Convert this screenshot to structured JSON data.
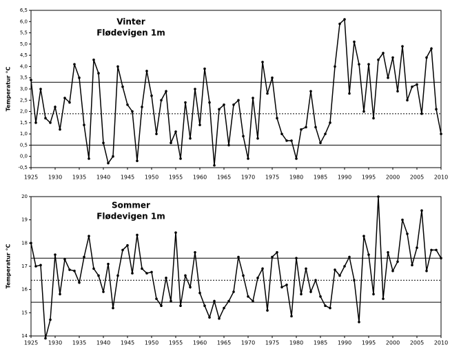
{
  "chart_data": [
    {
      "type": "line",
      "title": "Vinter",
      "subtitle": "Flødevigen 1m",
      "y_label": "Temperatur °C",
      "color": "#000000",
      "x": [
        1925,
        1926,
        1927,
        1928,
        1929,
        1930,
        1931,
        1932,
        1933,
        1934,
        1935,
        1936,
        1937,
        1938,
        1939,
        1940,
        1941,
        1942,
        1943,
        1944,
        1945,
        1946,
        1947,
        1948,
        1949,
        1950,
        1951,
        1952,
        1953,
        1954,
        1955,
        1956,
        1957,
        1958,
        1959,
        1960,
        1961,
        1962,
        1963,
        1964,
        1965,
        1966,
        1967,
        1968,
        1969,
        1970,
        1971,
        1972,
        1973,
        1974,
        1975,
        1976,
        1977,
        1978,
        1979,
        1980,
        1981,
        1982,
        1983,
        1984,
        1985,
        1986,
        1987,
        1988,
        1989,
        1990,
        1991,
        1992,
        1993,
        1994,
        1995,
        1996,
        1997,
        1998,
        1999,
        2000,
        2001,
        2002,
        2003,
        2004,
        2005,
        2006,
        2007,
        2008,
        2009,
        2010
      ],
      "values": [
        3.4,
        1.5,
        3.0,
        1.7,
        1.5,
        2.2,
        1.2,
        2.6,
        2.4,
        4.1,
        3.5,
        1.4,
        -0.1,
        4.3,
        3.7,
        0.6,
        -0.3,
        0.0,
        4.0,
        3.1,
        2.3,
        2.0,
        -0.2,
        2.2,
        3.8,
        2.7,
        1.0,
        2.5,
        2.9,
        0.6,
        1.1,
        -0.1,
        2.4,
        0.8,
        3.0,
        1.4,
        3.9,
        2.4,
        -0.4,
        2.1,
        2.3,
        0.5,
        2.3,
        2.5,
        0.9,
        -0.1,
        2.6,
        0.8,
        4.2,
        2.8,
        3.5,
        1.7,
        1.0,
        0.7,
        0.7,
        -0.1,
        1.2,
        1.3,
        2.9,
        1.3,
        0.6,
        1.0,
        1.5,
        4.0,
        5.9,
        6.1,
        2.8,
        5.1,
        4.1,
        2.0,
        4.1,
        1.7,
        4.3,
        4.6,
        3.5,
        4.4,
        2.9,
        4.9,
        2.5,
        3.1,
        3.2,
        1.9,
        4.4,
        4.8,
        2.1,
        1.0
      ],
      "xlim": [
        1925,
        2010
      ],
      "xticks": [
        1925,
        1930,
        1935,
        1940,
        1945,
        1950,
        1955,
        1960,
        1965,
        1970,
        1975,
        1980,
        1985,
        1990,
        1995,
        2000,
        2005,
        2010
      ],
      "ylim": [
        -0.5,
        6.5
      ],
      "yticks": [
        {
          "value": -0.5,
          "label": "-0,5"
        },
        {
          "value": 0,
          "label": "0,0"
        },
        {
          "value": 0.5,
          "label": "0,5"
        },
        {
          "value": 1,
          "label": "1,0"
        },
        {
          "value": 1.5,
          "label": "1,5"
        },
        {
          "value": 2,
          "label": "2,0"
        },
        {
          "value": 2.5,
          "label": "2,5"
        },
        {
          "value": 3,
          "label": "3,0"
        },
        {
          "value": 3.5,
          "label": "3,5"
        },
        {
          "value": 4,
          "label": "4,0"
        },
        {
          "value": 4.5,
          "label": "4,5"
        },
        {
          "value": 5,
          "label": "5,0"
        },
        {
          "value": 5.5,
          "label": "5,5"
        },
        {
          "value": 6,
          "label": "6,0"
        },
        {
          "value": 6.5,
          "label": "6,5"
        }
      ],
      "hlines": [
        {
          "value": 3.3,
          "style": "solid"
        },
        {
          "value": 1.9,
          "style": "dotted"
        },
        {
          "value": 0.5,
          "style": "solid"
        }
      ]
    },
    {
      "type": "line",
      "title": "Sommer",
      "subtitle": "Flødevigen 1m",
      "y_label": "Temperatur °C",
      "color": "#000000",
      "x": [
        1925,
        1926,
        1927,
        1928,
        1929,
        1930,
        1931,
        1932,
        1933,
        1934,
        1935,
        1936,
        1937,
        1938,
        1939,
        1940,
        1941,
        1942,
        1943,
        1944,
        1945,
        1946,
        1947,
        1948,
        1949,
        1950,
        1951,
        1952,
        1953,
        1954,
        1955,
        1956,
        1957,
        1958,
        1959,
        1960,
        1961,
        1962,
        1963,
        1964,
        1965,
        1966,
        1967,
        1968,
        1969,
        1970,
        1971,
        1972,
        1973,
        1974,
        1975,
        1976,
        1977,
        1978,
        1979,
        1980,
        1981,
        1982,
        1983,
        1984,
        1985,
        1986,
        1987,
        1988,
        1989,
        1990,
        1991,
        1992,
        1993,
        1994,
        1995,
        1996,
        1997,
        1998,
        1999,
        2000,
        2001,
        2002,
        2003,
        2004,
        2005,
        2006,
        2007,
        2008,
        2009,
        2010
      ],
      "values": [
        18.0,
        17.0,
        17.05,
        13.9,
        14.7,
        17.5,
        15.8,
        17.3,
        16.85,
        16.8,
        16.3,
        17.4,
        18.3,
        16.9,
        16.6,
        15.9,
        17.1,
        15.2,
        16.6,
        17.7,
        17.9,
        16.7,
        18.35,
        16.9,
        16.7,
        16.75,
        15.6,
        15.3,
        16.5,
        15.5,
        18.45,
        15.3,
        16.6,
        16.1,
        17.6,
        15.85,
        15.3,
        14.8,
        15.5,
        14.75,
        15.2,
        15.5,
        15.9,
        17.4,
        16.6,
        15.7,
        15.5,
        16.5,
        16.9,
        15.1,
        17.4,
        17.6,
        16.1,
        16.2,
        14.85,
        17.35,
        15.8,
        16.9,
        15.9,
        16.4,
        15.7,
        15.3,
        15.2,
        16.85,
        16.6,
        17.0,
        17.4,
        16.4,
        14.6,
        18.3,
        17.5,
        15.8,
        20.0,
        15.6,
        17.6,
        16.8,
        17.2,
        19.0,
        18.4,
        17.05,
        17.8,
        19.4,
        16.8,
        17.7,
        17.7,
        17.35
      ],
      "xlim": [
        1925,
        2010
      ],
      "xticks": [
        1925,
        1930,
        1935,
        1940,
        1945,
        1950,
        1955,
        1960,
        1965,
        1970,
        1975,
        1980,
        1985,
        1990,
        1995,
        2000,
        2005,
        2010
      ],
      "ylim": [
        14,
        20
      ],
      "yticks": [
        14,
        15,
        16,
        17,
        18,
        19,
        20
      ],
      "hlines": [
        {
          "value": 17.35,
          "style": "solid"
        },
        {
          "value": 16.4,
          "style": "dotted"
        },
        {
          "value": 15.45,
          "style": "solid"
        }
      ]
    }
  ]
}
